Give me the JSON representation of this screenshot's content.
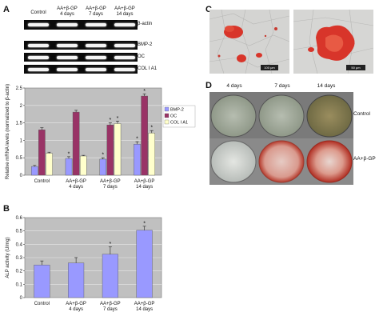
{
  "panels": {
    "a": "A",
    "b": "B",
    "c": "C",
    "d": "D"
  },
  "gel": {
    "column_headers": [
      "Control",
      "AA+β-GP\n4 days",
      "AA+β-GP\n7 days",
      "AA+β-GP\n14 days"
    ],
    "row_labels": [
      "β-actin",
      "BMP-2",
      "OC",
      "COL I A1"
    ]
  },
  "photo_d": {
    "column_labels": [
      "4 days",
      "7 days",
      "14 days"
    ],
    "row_labels": [
      "Control",
      "AA+β-GP"
    ]
  },
  "scale_bars": [
    "100 μm",
    "50 μm"
  ],
  "chart_data": [
    {
      "type": "bar",
      "panel": "A",
      "categories": [
        "Control",
        "AA+β-GP\n4 days",
        "AA+β-GP\n7 days",
        "AA+β-GP\n14 days"
      ],
      "ylabel": "Relative mRNA levels (normalized to β-actin)",
      "ylim": [
        0,
        2.5
      ],
      "yticks": [
        "0",
        "0.5",
        "1",
        "1.5",
        "2",
        "2.5"
      ],
      "grid": true,
      "legend_position": "right",
      "series": [
        {
          "name": "BMP-2",
          "color": "#9999ff",
          "values": [
            0.25,
            0.48,
            0.46,
            0.89
          ],
          "errors": [
            0.03,
            0.05,
            0.04,
            0.07
          ],
          "sig": [
            "",
            "*",
            "*",
            "*"
          ]
        },
        {
          "name": "OC",
          "color": "#993366",
          "values": [
            1.3,
            1.81,
            1.44,
            2.27
          ],
          "errors": [
            0.06,
            0.05,
            0.06,
            0.06
          ],
          "sig": [
            "",
            "",
            "*",
            "*"
          ]
        },
        {
          "name": "COL I A1",
          "color": "#ffffcc",
          "values": [
            0.63,
            0.55,
            1.48,
            1.21
          ],
          "errors": [
            0.03,
            0.02,
            0.07,
            0.07
          ],
          "sig": [
            "",
            "",
            "*",
            "*"
          ]
        }
      ]
    },
    {
      "type": "bar",
      "panel": "B",
      "categories": [
        "Control",
        "AA+β-GP\n4 days",
        "AA+β-GP\n7 days",
        "AA+β-GP\n14 days"
      ],
      "ylabel": "ALP activity (U/mg)",
      "ylim": [
        0,
        0.6
      ],
      "yticks": [
        "0",
        "0.1",
        "0.2",
        "0.3",
        "0.4",
        "0.5",
        "0.6"
      ],
      "grid": true,
      "series": [
        {
          "name": "ALP",
          "color": "#9999ff",
          "values": [
            0.245,
            0.26,
            0.325,
            0.505
          ],
          "errors": [
            0.03,
            0.04,
            0.055,
            0.03
          ],
          "sig": [
            "",
            "",
            "*",
            "*"
          ]
        }
      ]
    }
  ]
}
